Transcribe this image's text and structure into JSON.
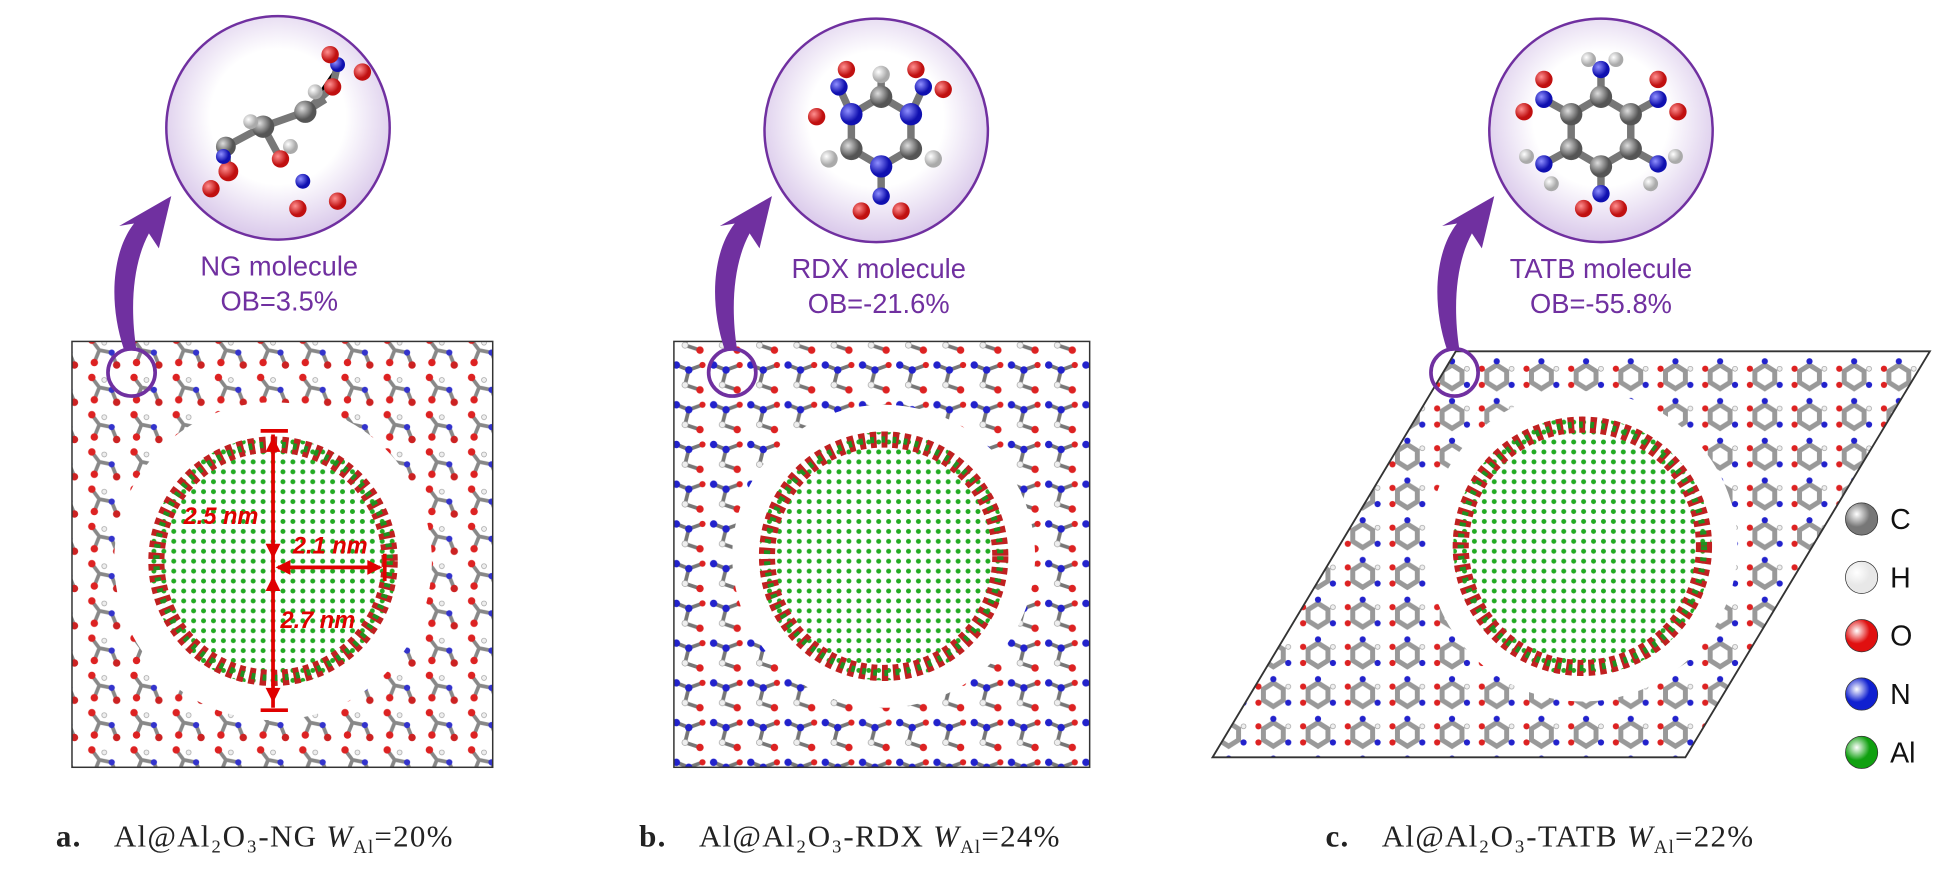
{
  "panels": [
    {
      "label": "a.",
      "compound": "Al@Al₂O₃-NG ",
      "weight_symbol": "W",
      "weight_subscript": "Al",
      "weight_value": "=20%",
      "molecule": "NG molecule",
      "oxygen_balance": "OB=3.5%",
      "annotations": [
        "2.5 nm",
        "2.1 nm",
        "2.7 nm"
      ]
    },
    {
      "label": "b.",
      "compound": "Al@Al₂O₃-RDX ",
      "weight_symbol": "W",
      "weight_subscript": "Al",
      "weight_value": "=24%",
      "molecule": "RDX molecule",
      "oxygen_balance": "OB=-21.6%"
    },
    {
      "label": "c.",
      "compound": "Al@Al₂O₃-TATB ",
      "weight_symbol": "W",
      "weight_subscript": "Al",
      "weight_value": "=22%",
      "molecule": "TATB molecule",
      "oxygen_balance": "OB=-55.8%"
    }
  ],
  "legend": [
    {
      "label": "C",
      "color": "#777777"
    },
    {
      "label": "H",
      "color": "#e8e8e8"
    },
    {
      "label": "O",
      "color": "#e01010"
    },
    {
      "label": "N",
      "color": "#1020d0"
    },
    {
      "label": "Al",
      "color": "#10a010"
    }
  ]
}
